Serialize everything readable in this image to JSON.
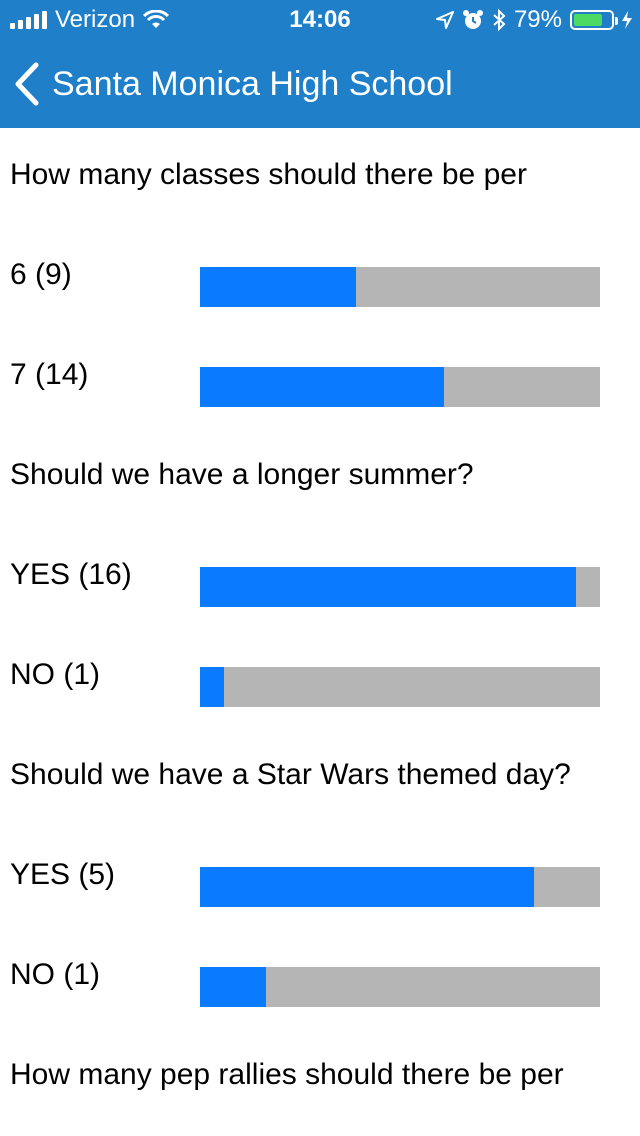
{
  "status_bar": {
    "carrier": "Verizon",
    "time": "14:06",
    "battery_percent": "79%",
    "battery_level": 0.79,
    "icons": [
      "signal-icon",
      "wifi-icon",
      "location-icon",
      "alarm-icon",
      "bluetooth-icon",
      "battery-icon",
      "charging-icon"
    ]
  },
  "nav": {
    "title": "Santa Monica High School",
    "back_icon": "chevron-left-icon"
  },
  "colors": {
    "header": "#1f7fc9",
    "bar_fill": "#0a7aff",
    "bar_track": "#b5b5b5",
    "battery": "#4cd964"
  },
  "polls": [
    {
      "question": "How many classes should there be per",
      "options": [
        {
          "label": "6 (9)",
          "fraction": 0.39
        },
        {
          "label": "7 (14)",
          "fraction": 0.61
        }
      ]
    },
    {
      "question": "Should we have a longer summer?",
      "options": [
        {
          "label": "YES (16)",
          "fraction": 0.94
        },
        {
          "label": "NO (1)",
          "fraction": 0.06
        }
      ]
    },
    {
      "question": "Should we have a Star Wars themed day?",
      "options": [
        {
          "label": "YES (5)",
          "fraction": 0.835
        },
        {
          "label": "NO (1)",
          "fraction": 0.165
        }
      ]
    },
    {
      "question": "How many pep rallies should there be per",
      "options": []
    }
  ]
}
